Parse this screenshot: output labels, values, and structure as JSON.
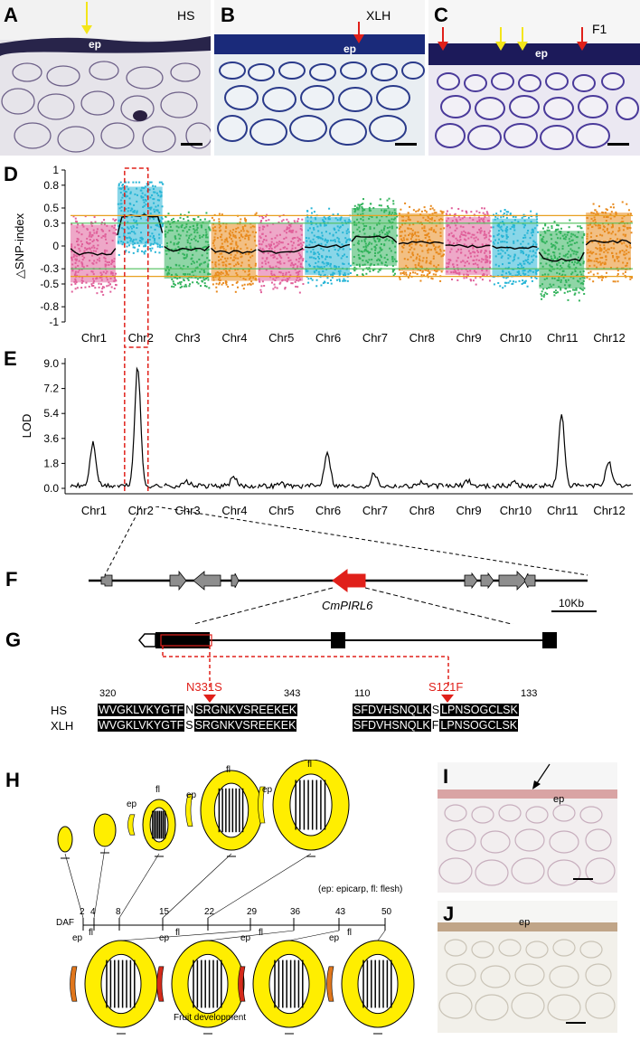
{
  "panels": {
    "A": {
      "letter": "A",
      "label": "HS",
      "ep": "ep"
    },
    "B": {
      "letter": "B",
      "label": "XLH",
      "ep": "ep"
    },
    "C": {
      "letter": "C",
      "label": "F1",
      "ep": "ep"
    },
    "D": {
      "letter": "D"
    },
    "E": {
      "letter": "E"
    },
    "F": {
      "letter": "F",
      "gene": "CmPIRL6",
      "scale": "10Kb"
    },
    "G": {
      "letter": "G"
    },
    "H": {
      "letter": "H",
      "legend": "(ep: epicarp, fl: flesh)",
      "daf_label": "DAF",
      "axis_caption": "Fruit development",
      "days": [
        "2",
        "4",
        "8",
        "15",
        "22",
        "29",
        "36",
        "43",
        "50"
      ],
      "ep": "ep",
      "fl": "fl"
    },
    "I": {
      "letter": "I",
      "ep": "ep"
    },
    "J": {
      "letter": "J",
      "ep": "ep"
    }
  },
  "colors": {
    "chr_palette": [
      "#e0609a",
      "#28b5d6",
      "#33b35c",
      "#e88a1e"
    ],
    "threshold_orange": "#e8a020",
    "threshold_green": "#4fbf5a",
    "highlight_red": "#e0201a",
    "fruit_yellow": "#ffee00"
  },
  "chart_data": [
    {
      "type": "scatter",
      "panel": "D",
      "ylabel": "△SNP-index",
      "yticks": [
        "1",
        "0.8",
        "0.5",
        "0.3",
        "0",
        "-0.3",
        "-0.5",
        "-0.8",
        "-1"
      ],
      "ylim": [
        -1,
        1
      ],
      "categories": [
        "Chr1",
        "Chr2",
        "Chr3",
        "Chr4",
        "Chr5",
        "Chr6",
        "Chr7",
        "Chr8",
        "Chr9",
        "Chr10",
        "Chr11",
        "Chr12"
      ],
      "mean_values": [
        -0.1,
        0.4,
        -0.05,
        -0.08,
        -0.08,
        0.0,
        0.12,
        0.05,
        0.0,
        -0.02,
        -0.18,
        0.06
      ],
      "threshold_95": [
        0.4,
        -0.4
      ],
      "threshold_99": [
        0.3,
        -0.3
      ]
    },
    {
      "type": "line",
      "panel": "E",
      "ylabel": "LOD",
      "yticks": [
        "9.0",
        "7.2",
        "5.4",
        "3.6",
        "1.8",
        "0.0"
      ],
      "ylim": [
        0,
        9.0
      ],
      "categories": [
        "Chr1",
        "Chr2",
        "Chr3",
        "Chr4",
        "Chr5",
        "Chr6",
        "Chr7",
        "Chr8",
        "Chr9",
        "Chr10",
        "Chr11",
        "Chr12"
      ],
      "peaks": [
        3.1,
        8.6,
        0.3,
        0.6,
        0.2,
        2.5,
        0.9,
        0.3,
        0.4,
        0.3,
        5.1,
        1.8
      ]
    }
  ],
  "alignment": {
    "left": {
      "start": "320",
      "end": "343",
      "mutation": "N331S",
      "HS": [
        "WVGKLVKYGTF",
        "N",
        "SRGNKVSREEKEK"
      ],
      "XLH": [
        "WVGKLVKYGTF",
        "S",
        "SRGNKVSREEKEK"
      ]
    },
    "right": {
      "start": "110",
      "end": "133",
      "mutation": "S121F",
      "HS": [
        "SFDVHSNQLK",
        "S",
        "LPNSOGCLSK"
      ],
      "XLH": [
        "SFDVHSNQLK",
        "F",
        "LPNSOGCLSK"
      ]
    },
    "rows": [
      "HS",
      "XLH"
    ]
  }
}
